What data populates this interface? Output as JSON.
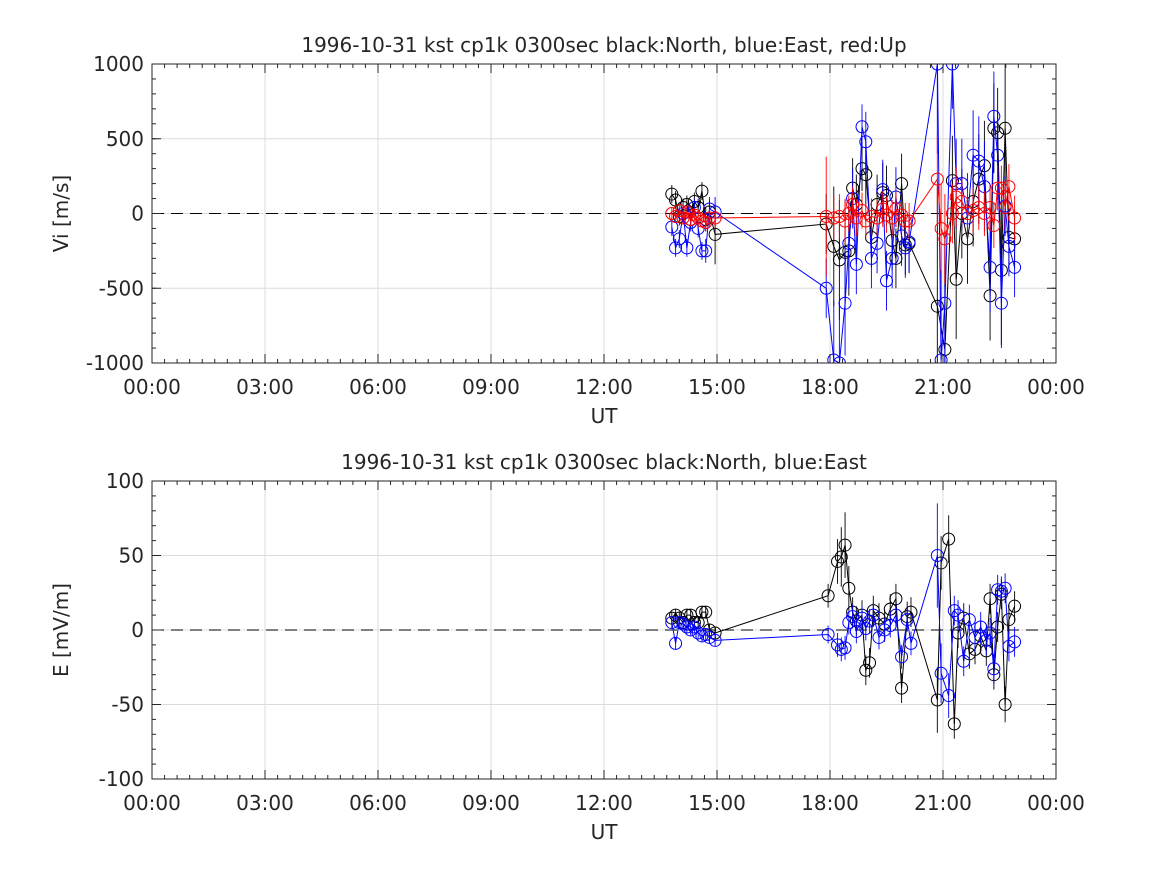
{
  "figure": {
    "background": "#ffffff"
  },
  "chart_data": [
    {
      "type": "scatter",
      "title": "1996-10-31 kst cp1k 0300sec black:North, blue:East, red:Up",
      "xlabel": "UT",
      "ylabel": "Vi [m/s]",
      "xlim": [
        0,
        24
      ],
      "ylim": [
        -1000,
        1000
      ],
      "xticks": [
        0,
        3,
        6,
        9,
        12,
        15,
        18,
        21,
        24
      ],
      "xtick_labels": [
        "00:00",
        "03:00",
        "06:00",
        "09:00",
        "12:00",
        "15:00",
        "18:00",
        "21:00",
        "00:00"
      ],
      "yticks": [
        1000,
        500,
        0,
        -500,
        -1000
      ],
      "ytick_labels": [
        "1000",
        "500",
        "0",
        "-500",
        "-1000"
      ],
      "grid": true,
      "zero_line": "dashed",
      "legend": "none",
      "series": [
        {
          "color": "#000000",
          "x": [
            13.8,
            13.9,
            14.0,
            14.1,
            14.2,
            14.3,
            14.4,
            14.5,
            14.6,
            14.7,
            14.8,
            14.95,
            17.9,
            18.1,
            18.25,
            18.4,
            18.5,
            18.6,
            18.7,
            18.85,
            18.95,
            19.1,
            19.25,
            19.4,
            19.5,
            19.65,
            19.75,
            19.9,
            20.0,
            20.1,
            20.85,
            21.05,
            21.25,
            21.35,
            21.5,
            21.65,
            21.8,
            21.95,
            22.1,
            22.25,
            22.35,
            22.45,
            22.55,
            22.65,
            22.75,
            22.9
          ],
          "y": [
            130,
            90,
            -20,
            40,
            60,
            -40,
            80,
            40,
            150,
            -40,
            10,
            -140,
            -70,
            -220,
            -310,
            -260,
            -250,
            170,
            60,
            300,
            260,
            -160,
            60,
            140,
            120,
            -180,
            -300,
            200,
            -210,
            -200,
            -620,
            -910,
            220,
            -440,
            0,
            -170,
            80,
            230,
            320,
            -550,
            570,
            540,
            -380,
            570,
            -160,
            -170
          ],
          "yerr": [
            60,
            60,
            60,
            60,
            60,
            60,
            60,
            60,
            60,
            80,
            80,
            200,
            200,
            400,
            400,
            350,
            300,
            200,
            200,
            150,
            200,
            200,
            200,
            200,
            200,
            200,
            200,
            200,
            200,
            200,
            800,
            800,
            300,
            400,
            300,
            300,
            300,
            300,
            300,
            300,
            300,
            300,
            500,
            500,
            200,
            200
          ]
        },
        {
          "color": "#0000ff",
          "x": [
            13.8,
            13.9,
            14.0,
            14.1,
            14.2,
            14.3,
            14.4,
            14.5,
            14.6,
            14.7,
            14.8,
            14.95,
            17.9,
            18.1,
            18.25,
            18.4,
            18.5,
            18.6,
            18.7,
            18.85,
            18.95,
            19.1,
            19.25,
            19.4,
            19.5,
            19.65,
            19.75,
            19.9,
            20.0,
            20.1,
            20.85,
            20.95,
            21.05,
            21.25,
            21.35,
            21.5,
            21.65,
            21.8,
            21.95,
            22.1,
            22.25,
            22.35,
            22.45,
            22.55,
            22.65,
            22.75,
            22.9
          ],
          "y": [
            -90,
            -230,
            -170,
            0,
            -230,
            -60,
            40,
            -100,
            -250,
            -250,
            30,
            10,
            -500,
            -980,
            -1000,
            -600,
            -200,
            100,
            -340,
            580,
            480,
            -300,
            -200,
            160,
            -450,
            -300,
            110,
            -150,
            -230,
            -190,
            1000,
            -980,
            -600,
            1000,
            200,
            200,
            -30,
            390,
            350,
            180,
            -360,
            650,
            390,
            -600,
            50,
            -220,
            -360
          ],
          "yerr": [
            60,
            60,
            60,
            60,
            60,
            60,
            60,
            60,
            60,
            80,
            80,
            100,
            200,
            400,
            400,
            350,
            300,
            200,
            200,
            150,
            200,
            200,
            200,
            200,
            200,
            200,
            200,
            200,
            200,
            200,
            600,
            600,
            400,
            300,
            300,
            300,
            300,
            300,
            300,
            300,
            300,
            300,
            300,
            300,
            200,
            200,
            200
          ]
        },
        {
          "color": "#ff0000",
          "x": [
            13.8,
            13.9,
            14.0,
            14.1,
            14.2,
            14.3,
            14.4,
            14.5,
            14.6,
            14.7,
            14.8,
            14.95,
            17.9,
            18.1,
            18.25,
            18.4,
            18.5,
            18.6,
            18.7,
            18.85,
            18.95,
            19.1,
            19.25,
            19.4,
            19.5,
            19.65,
            19.75,
            19.9,
            20.0,
            20.1,
            20.85,
            20.95,
            21.05,
            21.25,
            21.35,
            21.5,
            21.65,
            21.8,
            21.95,
            22.1,
            22.25,
            22.35,
            22.45,
            22.55,
            22.65,
            22.75,
            22.9
          ],
          "y": [
            0,
            -20,
            20,
            -30,
            10,
            -40,
            -10,
            -30,
            -50,
            -60,
            -30,
            -30,
            -20,
            -30,
            -20,
            -50,
            0,
            60,
            -30,
            20,
            -50,
            -20,
            -30,
            30,
            -10,
            -30,
            30,
            -10,
            -50,
            -50,
            230,
            -100,
            -170,
            0,
            110,
            80,
            0,
            20,
            40,
            0,
            40,
            -80,
            170,
            170,
            40,
            180,
            -30
          ],
          "yerr": [
            40,
            40,
            40,
            40,
            40,
            40,
            40,
            40,
            40,
            60,
            60,
            60,
            400,
            150,
            150,
            150,
            120,
            120,
            120,
            120,
            120,
            120,
            120,
            120,
            120,
            120,
            120,
            120,
            120,
            120,
            300,
            300,
            300,
            200,
            200,
            150,
            150,
            150,
            150,
            150,
            150,
            150,
            150,
            150,
            150,
            150,
            150
          ]
        }
      ]
    },
    {
      "type": "scatter",
      "title": "1996-10-31 kst cp1k 0300sec black:North, blue:East",
      "xlabel": "UT",
      "ylabel": "E [mV/m]",
      "xlim": [
        0,
        24
      ],
      "ylim": [
        -100,
        100
      ],
      "xticks": [
        0,
        3,
        6,
        9,
        12,
        15,
        18,
        21,
        24
      ],
      "xtick_labels": [
        "00:00",
        "03:00",
        "06:00",
        "09:00",
        "12:00",
        "15:00",
        "18:00",
        "21:00",
        "00:00"
      ],
      "yticks": [
        100,
        50,
        0,
        -50,
        -100
      ],
      "ytick_labels": [
        "100",
        "50",
        "0",
        "-50",
        "-100"
      ],
      "grid": true,
      "zero_line": "dashed",
      "legend": "none",
      "series": [
        {
          "color": "#000000",
          "x": [
            13.8,
            13.9,
            14.0,
            14.1,
            14.2,
            14.3,
            14.4,
            14.5,
            14.6,
            14.7,
            14.8,
            14.95,
            17.95,
            18.2,
            18.3,
            18.4,
            18.5,
            18.6,
            18.7,
            18.85,
            18.95,
            19.05,
            19.15,
            19.3,
            19.45,
            19.6,
            19.75,
            19.9,
            20.05,
            20.15,
            20.85,
            20.95,
            21.15,
            21.3,
            21.4,
            21.55,
            21.7,
            21.85,
            22.0,
            22.15,
            22.25,
            22.35,
            22.45,
            22.55,
            22.65,
            22.75,
            22.9
          ],
          "y": [
            8,
            10,
            8,
            5,
            10,
            10,
            5,
            5,
            12,
            12,
            0,
            -2,
            23,
            46,
            49,
            57,
            28,
            12,
            6,
            10,
            -27,
            -22,
            13,
            8,
            4,
            14,
            21,
            -39,
            9,
            12,
            -47,
            45,
            61,
            -63,
            -2,
            8,
            -16,
            -13,
            -4,
            -14,
            21,
            -30,
            2,
            24,
            -50,
            7,
            16
          ],
          "yerr": [
            4,
            4,
            4,
            4,
            4,
            4,
            4,
            4,
            4,
            4,
            4,
            4,
            8,
            15,
            20,
            22,
            15,
            10,
            10,
            10,
            10,
            10,
            10,
            10,
            10,
            10,
            10,
            10,
            10,
            10,
            22,
            18,
            16,
            10,
            10,
            10,
            10,
            10,
            10,
            10,
            10,
            10,
            10,
            10,
            12,
            10,
            10
          ]
        },
        {
          "color": "#0000ff",
          "x": [
            13.8,
            13.9,
            14.0,
            14.1,
            14.2,
            14.3,
            14.4,
            14.5,
            14.6,
            14.7,
            14.8,
            14.95,
            17.95,
            18.2,
            18.3,
            18.4,
            18.5,
            18.6,
            18.7,
            18.85,
            18.95,
            19.05,
            19.15,
            19.3,
            19.45,
            19.6,
            19.75,
            19.9,
            20.05,
            20.15,
            20.85,
            20.95,
            21.15,
            21.3,
            21.4,
            21.55,
            21.7,
            21.85,
            22.0,
            22.15,
            22.25,
            22.35,
            22.45,
            22.55,
            22.65,
            22.75,
            22.9
          ],
          "y": [
            5,
            -9,
            5,
            4,
            2,
            0,
            2,
            -2,
            -4,
            -3,
            -5,
            -7,
            -3,
            -10,
            -13,
            -12,
            5,
            9,
            -1,
            8,
            1,
            6,
            10,
            -5,
            0,
            3,
            10,
            -18,
            7,
            -9,
            50,
            -29,
            -44,
            13,
            10,
            -21,
            7,
            -5,
            2,
            -7,
            -2,
            -26,
            27,
            26,
            28,
            -11,
            -8
          ],
          "yerr": [
            4,
            4,
            4,
            4,
            4,
            4,
            4,
            4,
            4,
            4,
            4,
            4,
            6,
            8,
            8,
            8,
            8,
            8,
            8,
            8,
            8,
            8,
            8,
            8,
            8,
            8,
            8,
            8,
            8,
            8,
            35,
            20,
            15,
            10,
            10,
            10,
            10,
            10,
            10,
            10,
            10,
            10,
            10,
            10,
            10,
            10,
            10
          ]
        }
      ]
    }
  ]
}
